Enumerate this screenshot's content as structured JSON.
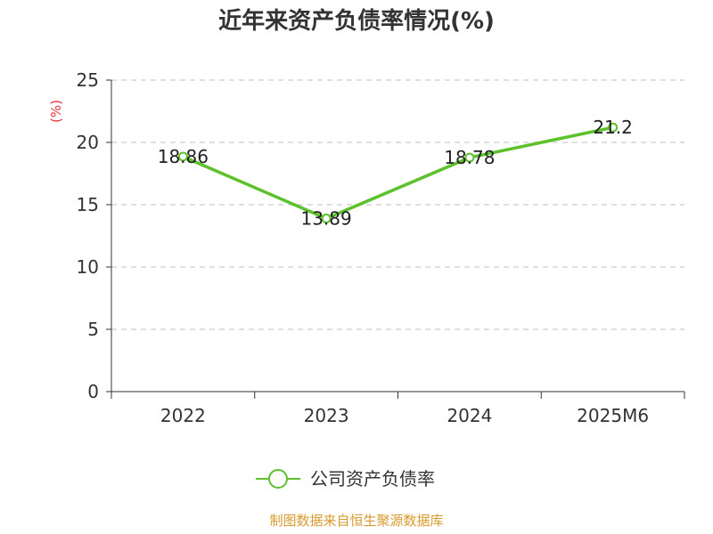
{
  "chart_data": {
    "type": "line",
    "title": "近年来资产负债率情况(%)",
    "ylabel": "(%)",
    "categories": [
      "2022",
      "2023",
      "2024",
      "2025M6"
    ],
    "series": [
      {
        "name": "公司资产负债率",
        "values": [
          18.86,
          13.89,
          18.78,
          21.2
        ],
        "data_labels": [
          "18.86",
          "13.89",
          "18.78",
          "21.2"
        ]
      }
    ],
    "ylim": [
      0,
      25
    ],
    "yticks": [
      0,
      5,
      10,
      15,
      20,
      25
    ],
    "ytick_labels": [
      "0",
      "5",
      "10",
      "15",
      "20",
      "25"
    ],
    "grid": true,
    "grid_style": "dashed-horizontal",
    "legend_position": "bottom-center"
  },
  "source_note": "制图数据来自恒生聚源数据库",
  "colors": {
    "line": "#5cc12a",
    "marker_fill": "#ffffff",
    "axis": "#333333",
    "grid": "#cccccc",
    "ylabel": "#e8323c",
    "source_note": "#d89a2c",
    "title": "#333333"
  }
}
